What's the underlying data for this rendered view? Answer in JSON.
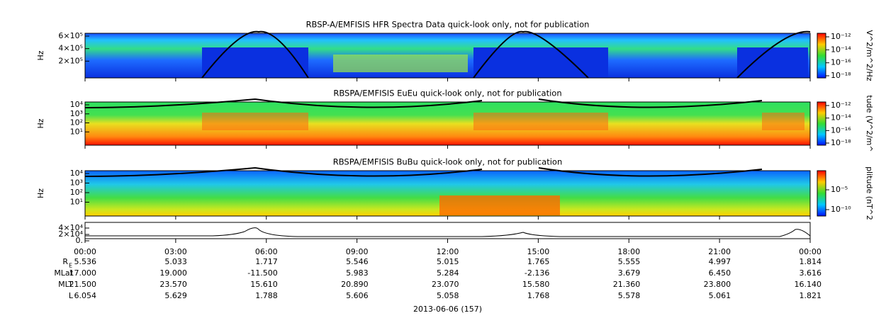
{
  "panels": [
    {
      "title": "RBSP-A/EMFISIS  HFR Spectra Data quick-look only, not for publication",
      "y_label": "Hz",
      "y_ticks": [
        "6×10⁵",
        "4×10⁵",
        "2×10⁵"
      ],
      "colorbar_label": "V^2/m^2/Hz",
      "colorbar_ticks": [
        "10⁻¹²",
        "10⁻¹⁴",
        "10⁻¹⁶",
        "10⁻¹⁸"
      ]
    },
    {
      "title": "RBSPA/EMFISIS  EuEu quick-look only, not for publication",
      "y_label": "Hz",
      "y_ticks": [
        "10⁴",
        "10³",
        "10²",
        "10¹"
      ],
      "colorbar_label": "tude (V^2/m^",
      "colorbar_ticks": [
        "10⁻¹²",
        "10⁻¹⁴",
        "10⁻¹⁶",
        "10⁻¹⁸"
      ]
    },
    {
      "title": "RBSPA/EMFISIS  BuBu quick-look only, not for publication",
      "y_label": "Hz",
      "y_ticks": [
        "10⁴",
        "10³",
        "10²",
        "10¹"
      ],
      "colorbar_label": "plitude (nT^2",
      "colorbar_ticks": [
        "10⁻⁵",
        "10⁻¹⁰"
      ]
    }
  ],
  "line_panel": {
    "y_ticks": [
      "4×10⁴",
      "2×10⁴",
      "0."
    ]
  },
  "time_axis": {
    "ticks": [
      "00:00",
      "03:00",
      "06:00",
      "09:00",
      "12:00",
      "15:00",
      "18:00",
      "21:00",
      "00:00"
    ]
  },
  "ephemeris": [
    {
      "label": "R",
      "label_sub": "E",
      "values": [
        "5.536",
        "5.033",
        "1.717",
        "5.546",
        "5.015",
        "1.765",
        "5.555",
        "4.997",
        "1.814"
      ]
    },
    {
      "label": "MLat",
      "values": [
        "17.000",
        "19.000",
        "-11.500",
        "5.983",
        "5.284",
        "-2.136",
        "3.679",
        "6.450",
        "3.616"
      ]
    },
    {
      "label": "MLT",
      "values": [
        "21.500",
        "23.570",
        "15.610",
        "20.890",
        "23.070",
        "15.580",
        "21.360",
        "23.800",
        "16.140"
      ]
    },
    {
      "label": "L",
      "values": [
        "6.054",
        "5.629",
        "1.788",
        "5.606",
        "5.058",
        "1.768",
        "5.578",
        "5.061",
        "1.821"
      ]
    }
  ],
  "date_label": "2013-06-06 (157)"
}
